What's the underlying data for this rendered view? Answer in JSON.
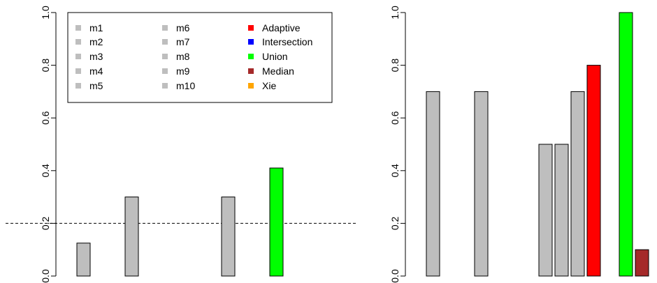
{
  "chart_data": [
    {
      "type": "bar",
      "categories": [
        "m1",
        "m2",
        "m3",
        "m4",
        "m5",
        "m6",
        "m7",
        "m8",
        "m9",
        "m10",
        "Adaptive",
        "Intersection",
        "Union",
        "Median",
        "Xie"
      ],
      "values": [
        0.125,
        0,
        0,
        0.3,
        0,
        0,
        0,
        0,
        0,
        0.3,
        0,
        0,
        0.41,
        0,
        0
      ],
      "ylim": [
        0,
        1
      ],
      "yticks": [
        "0.0",
        "0.2",
        "0.4",
        "0.6",
        "0.8",
        "1.0"
      ],
      "reference_line": 0.2,
      "legend": {
        "placement": "top-left",
        "entries": [
          {
            "label": "m1",
            "color": "#bebebe"
          },
          {
            "label": "m2",
            "color": "#bebebe"
          },
          {
            "label": "m3",
            "color": "#bebebe"
          },
          {
            "label": "m4",
            "color": "#bebebe"
          },
          {
            "label": "m5",
            "color": "#bebebe"
          },
          {
            "label": "m6",
            "color": "#bebebe"
          },
          {
            "label": "m7",
            "color": "#bebebe"
          },
          {
            "label": "m8",
            "color": "#bebebe"
          },
          {
            "label": "m9",
            "color": "#bebebe"
          },
          {
            "label": "m10",
            "color": "#bebebe"
          },
          {
            "label": "Adaptive",
            "color": "#ff0000"
          },
          {
            "label": "Intersection",
            "color": "#0000ff"
          },
          {
            "label": "Union",
            "color": "#00ff00"
          },
          {
            "label": "Median",
            "color": "#a52a2a"
          },
          {
            "label": "Xie",
            "color": "#ffa500"
          }
        ]
      }
    },
    {
      "type": "bar",
      "categories": [
        "m1",
        "m2",
        "m3",
        "m4",
        "m5",
        "m6",
        "m7",
        "m8",
        "m9",
        "m10",
        "Adaptive",
        "Intersection",
        "Union",
        "Median",
        "Xie"
      ],
      "values": [
        0.7,
        0,
        0,
        0.7,
        0,
        0,
        0,
        0.5,
        0.5,
        0.7,
        0.8,
        0,
        1.0,
        0.1,
        0
      ],
      "ylim": [
        0,
        1
      ],
      "yticks": [
        "0.0",
        "0.2",
        "0.4",
        "0.6",
        "0.8",
        "1.0"
      ]
    }
  ],
  "colors": {
    "m": "#bebebe",
    "Adaptive": "#ff0000",
    "Intersection": "#0000ff",
    "Union": "#00ff00",
    "Median": "#a52a2a",
    "Xie": "#ffa500"
  }
}
